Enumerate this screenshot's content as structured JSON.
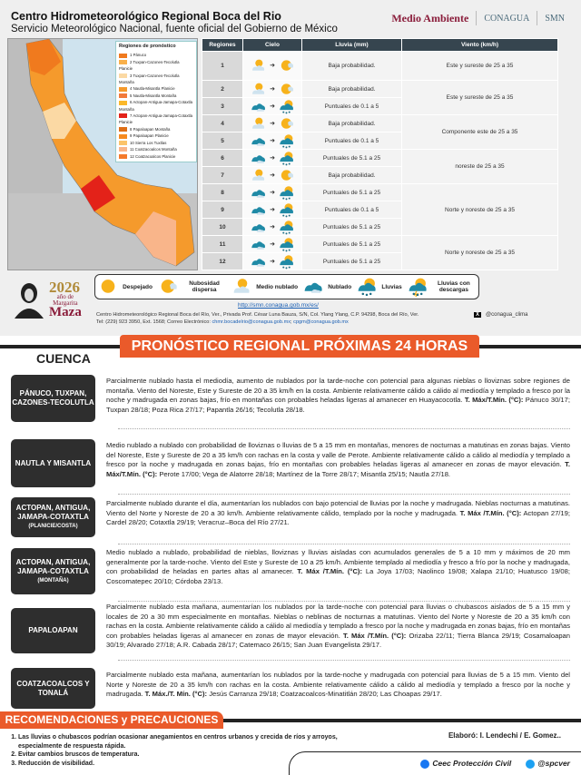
{
  "header": {
    "title": "Centro Hidrometeorológico Regional Boca del Rio",
    "subtitle": "Servicio Meteorológico Nacional, fuente oficial del Gobierno de México",
    "logos": [
      "Medio Ambiente",
      "CONAGUA",
      "SMN"
    ]
  },
  "map": {
    "legend_title": "Regiones de pronóstico",
    "regions": [
      {
        "label": "1 Pánuco",
        "color": "#f07a1e"
      },
      {
        "label": "2 Tuxpan-Cazones-Tecolutla Planicie",
        "color": "#f9b04a"
      },
      {
        "label": "3 Tuxpan-Cazones-Tecolutla Montaña",
        "color": "#fbd9a4"
      },
      {
        "label": "4 Nautla-Misantla Planicie",
        "color": "#f59a2c"
      },
      {
        "label": "5 Nautla-Misantla Montaña",
        "color": "#f27a3a"
      },
      {
        "label": "6 Actopan-Antigua-Jamapa-Cotaxtla Montaña",
        "color": "#fbb82a"
      },
      {
        "label": "7 Actopan-Antigua-Jamapa-Cotaxtla Planicie",
        "color": "#e32219"
      },
      {
        "label": "8 Papaloapan Montaña",
        "color": "#de6f16"
      },
      {
        "label": "9 Papaloapan Planicie",
        "color": "#f68a1f"
      },
      {
        "label": "10 Sierra Los Tuxtlas",
        "color": "#fbc46a"
      },
      {
        "label": "11 Coatzacoalcos Montaña",
        "color": "#f9b58a"
      },
      {
        "label": "12 Coatzacoalcos Planicie",
        "color": "#f47a2a"
      }
    ]
  },
  "table": {
    "headers": [
      "Regiones",
      "Cielo",
      "Lluvia (mm)",
      "Viento (km/h)"
    ],
    "rows": [
      {
        "region": "1",
        "from": "medio-nublado",
        "to": "nubosidad-dispersa",
        "lluvia": "Baja probabilidad.",
        "viento": "Este y sureste de 25 a 35",
        "span": 1
      },
      {
        "region": "2",
        "from": "medio-nublado",
        "to": "nubosidad-dispersa",
        "lluvia": "Baja probabilidad.",
        "viento": "Este y sureste de 25 a 35",
        "span": 2
      },
      {
        "region": "3",
        "from": "nublado",
        "to": "lluvias",
        "lluvia": "Puntuales de 0.1 a 5"
      },
      {
        "region": "4",
        "from": "medio-nublado",
        "to": "nubosidad-dispersa",
        "lluvia": "Baja probabilidad.",
        "viento": "Componente este de 25 a 35",
        "span": 2
      },
      {
        "region": "5",
        "from": "nublado",
        "to": "lluvias",
        "lluvia": "Puntuales de 0.1 a 5"
      },
      {
        "region": "6",
        "from": "nublado",
        "to": "lluvias",
        "lluvia": "Puntuales de 5.1 a 25",
        "viento": "noreste de 25 a 35",
        "span": 2
      },
      {
        "region": "7",
        "from": "medio-nublado",
        "to": "nubosidad-dispersa",
        "lluvia": "Baja probabilidad."
      },
      {
        "region": "8",
        "from": "nublado",
        "to": "lluvias",
        "lluvia": "Puntuales de 5.1 a 25",
        "viento": "Norte y noreste de 25 a 35",
        "span": 3
      },
      {
        "region": "9",
        "from": "nublado",
        "to": "lluvias",
        "lluvia": "Puntuales de 0.1 a 5"
      },
      {
        "region": "10",
        "from": "nublado",
        "to": "lluvias",
        "lluvia": "Puntuales de 5.1 a 25"
      },
      {
        "region": "11",
        "from": "nublado",
        "to": "lluvias",
        "lluvia": "Puntuales de 5.1 a 25",
        "viento": "Norte y noreste de 25 a 35",
        "span": 2
      },
      {
        "region": "12",
        "from": "nublado",
        "to": "lluvias",
        "lluvia": "Puntuales de 5.1 a 25"
      }
    ]
  },
  "sky_legend": [
    {
      "icon": "despejado",
      "label": "Despejado"
    },
    {
      "icon": "nubosidad-dispersa",
      "label": "Nubosidad dispersa"
    },
    {
      "icon": "medio-nublado",
      "label": "Medio nublado"
    },
    {
      "icon": "nublado",
      "label": "Nublado"
    },
    {
      "icon": "lluvias",
      "label": "Lluvias"
    },
    {
      "icon": "descargas",
      "label": "Lluvias con descargas"
    }
  ],
  "footer": {
    "year": "2026",
    "year_sub": "año de",
    "name1": "Margarita",
    "name2": "Maza",
    "url": "http://smn.conagua.gob.mx/es/",
    "address": "Centro Hidrometeorológico Regional Boca del Río, Ver., Privada Prof. César Luna Bauza, S/N, Col. Ylang Ylang, C.P. 94298, Boca del Río, Ver.",
    "tel": "Tel: (229) 923 3950, Ext. 1568; Correo Electrónico:",
    "email1": "chmr.bocadelrio@conagua.gob.mx",
    "email2": "cpgm@conagua.gob.mx",
    "x_handle": "@conagua_clima"
  },
  "main_title": "PRONÓSTICO REGIONAL PRÓXIMAS 24 HORAS",
  "cuenca_label": "CUENCA",
  "sections": [
    {
      "name": "PÁNUCO, TUXPAN, CAZONES-TECOLUTLA",
      "sub": "",
      "text": "Parcialmente nublado hasta el mediodía, aumento de nublados por la tarde-noche con potencial para algunas nieblas o lloviznas sobre regiones de montaña. Viento del Noreste, Este y Sureste de 20 a 35 km/h en la costa. Ambiente relativamente cálido a cálido al mediodía y templado a fresco por la noche y madrugada en zonas bajas, frío en montañas con probables heladas ligeras al amanecer en Huayacocotla.",
      "temp_label": "T. Máx/T.Mín. (°C):",
      "temps": "Pánuco 30/17; Tuxpan 28/18; Poza Rica 27/17; Papantla 26/16; Tecolutla 28/18."
    },
    {
      "name": "NAUTLA Y MISANTLA",
      "sub": "",
      "text": "Medio nublado a nublado con probabilidad de lloviznas o lluvias de 5 a 15 mm en montañas, menores de nocturnas a matutinas en zonas bajas. Viento del Noreste, Este y Sureste de 20 a 35 km/h con rachas en la costa y valle de Perote. Ambiente relativamente cálido a cálido al mediodía y templado a fresco por la noche y madrugada en zonas bajas, frío en montañas con probables heladas ligeras al amanecer en zonas de mayor elevación.",
      "temp_label": "T. Máx/T.Mín. (°C):",
      "temps": "Perote 17/00; Vega de Alatorre 28/18; Martínez de la Torre 28/17; Misantla 25/15; Nautla 27/18."
    },
    {
      "name": "ACTOPAN, ANTIGUA, JAMAPA-COTAXTLA",
      "sub": "(PLANICIE/COSTA)",
      "text": "Parcialmente nublado durante el día, aumentarían los nublados con bajo potencial de lluvias por la noche y madrugada. Nieblas nocturnas a matutinas. Viento del Norte y Noreste de 20 a 30 km/h. Ambiente relativamente cálido, templado por la noche y madrugada.",
      "temp_label": "T. Máx /T.Mín. (°C):",
      "temps": "Actopan 27/19; Cardel 28/20; Cotaxtla 29/19; Veracruz–Boca del Río 27/21."
    },
    {
      "name": "ACTOPAN, ANTIGUA, JAMAPA-COTAXTLA",
      "sub": "(MONTAÑA)",
      "text": "Medio nublado a nublado, probabilidad de nieblas, lloviznas y lluvias aisladas con acumulados generales de 5 a 10 mm y máximos de 20 mm generalmente por la tarde-noche. Viento del Este y Sureste de 10 a 25 km/h. Ambiente templado al mediodía y fresco a frío por la noche y madrugada, con probabilidad de heladas en partes altas al amanecer.",
      "temp_label": "T. Máx /T.Mín. (°C):",
      "temps": "La Joya 17/03; Naolinco 19/08; Xalapa 21/10; Huatusco 19/08; Coscomatepec 20/10; Córdoba 23/13."
    },
    {
      "name": "PAPALOAPAN",
      "sub": "",
      "text": "Parcialmente nublado esta mañana, aumentarían los nublados por la tarde-noche con potencial para lluvias o chubascos aislados de 5 a 15 mm y locales de 20 a 30 mm especialmente en montañas. Nieblas o neblinas de nocturnas a matutinas. Viento del Norte y Noreste de 20 a 35 km/h con rachas en la costa. Ambiente relativamente cálido a cálido al mediodía y templado a fresco por la noche y madrugada en zonas bajas, frío en montañas con probables heladas ligeras al amanecer en zonas de mayor elevación.",
      "temp_label": "T. Máx /T.Mín. (°C):",
      "temps": "Orizaba 22/11; Tierra Blanca 29/19; Cosamaloapan 30/19; Alvarado 27/18; A.R. Cabada 28/17; Catemaco 26/15; San Juan Evangelista 29/17."
    },
    {
      "name": "COATZACOALCOS Y TONALÁ",
      "sub": "",
      "text": "Parcialmente nublado esta mañana, aumentarían los nublados por la tarde-noche y madrugada con potencial para lluvias de 5 a 15 mm. Viento del Norte y Noreste de 20 a 35 km/h con rachas en la costa. Ambiente relativamente cálido a cálido al mediodía y templado a fresco por la noche y madrugada.",
      "temp_label": "T. Máx./T. Mín. (°C):",
      "temps": "Jesús Carranza 29/18; Coatzacoalcos-Minatitlán 28/20; Las Choapas 29/17."
    }
  ],
  "recommendations": {
    "title": "RECOMENDACIONES y PRECAUCIONES",
    "items": [
      "Las lluvias o chubascos podrían ocasionar anegamientos en centros urbanos y crecida de ríos y arroyos, especialmente de respuesta rápida.",
      "Evitar cambios bruscos de temperatura.",
      "Reducción de visibilidad."
    ]
  },
  "elaboro": "Elaboró: I. Lendechi / E. Gomez..",
  "social": [
    {
      "icon": "facebook-icon",
      "label": "Ceec Protección Civil",
      "color": "#1877f2"
    },
    {
      "icon": "twitter-icon",
      "label": "@spcver",
      "color": "#1da1f2"
    }
  ],
  "colors": {
    "accent": "#ea5a2a",
    "dark": "#2e2e2e",
    "table_header": "#36454f"
  }
}
